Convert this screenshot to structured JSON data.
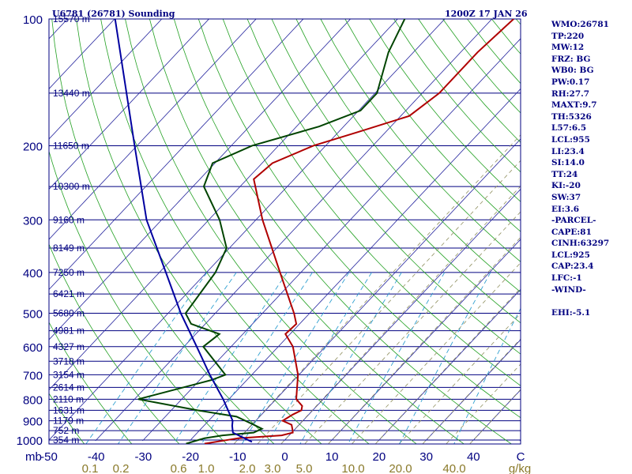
{
  "header": {
    "station": "U6781 (26781) Sounding",
    "time": "1200Z 17 JAN 26"
  },
  "indices": [
    "WMO:26781",
    "TP:220",
    "MW:12",
    "FRZ: BG",
    "WB0: BG",
    "PW:0.17",
    "RH:27.7",
    "MAXT:9.7",
    "TH:5326",
    "L57:6.5",
    "LCL:955",
    "LI:23.4",
    "SI:14.0",
    "TT:24",
    "KI:-20",
    "SW:37",
    "EI:3.6",
    "-PARCEL-",
    "CAPE:81",
    "CINH:63297",
    "LCL:925",
    "CAP:23.4",
    "LFC:-1",
    "-WIND-",
    "",
    "EHI:-5.1"
  ],
  "chart_data": {
    "type": "line",
    "subtype": "skew-t log-p",
    "y_unit_label": "mb",
    "pressure_range_mb": [
      1000,
      100
    ],
    "temperature_range_c": [
      -50,
      50
    ],
    "temperature_ticks": [
      "-50",
      "-40",
      "-30",
      "-20",
      "-10",
      "0",
      "10",
      "20",
      "30",
      "40",
      "C"
    ],
    "temperature_tick_values": [
      -50,
      -40,
      -30,
      -20,
      -10,
      0,
      10,
      20,
      30,
      40,
      50
    ],
    "pressure_ticks": [
      "100",
      "200",
      "300",
      "400",
      "500",
      "600",
      "700",
      "800",
      "900",
      "1000"
    ],
    "pressure_tick_values": [
      100,
      200,
      300,
      400,
      500,
      600,
      700,
      800,
      900,
      1000
    ],
    "mixing_ratio_labels": [
      "0.1",
      "0.2",
      "0.6",
      "1.0",
      "2.0",
      "3.0",
      "5.0",
      "10.0",
      "20.0",
      "40.0",
      "g/kg"
    ],
    "height_labels": [
      {
        "p": 100,
        "text": "15570 m"
      },
      {
        "p": 150,
        "text": "13440 m"
      },
      {
        "p": 200,
        "text": "11650 m"
      },
      {
        "p": 250,
        "text": "10300 m"
      },
      {
        "p": 300,
        "text": "9160 m"
      },
      {
        "p": 350,
        "text": "8149 m"
      },
      {
        "p": 400,
        "text": "7250 m"
      },
      {
        "p": 450,
        "text": "6421 m"
      },
      {
        "p": 500,
        "text": "5680 m"
      },
      {
        "p": 550,
        "text": "4981 m"
      },
      {
        "p": 600,
        "text": "4327 m"
      },
      {
        "p": 650,
        "text": "3718 m"
      },
      {
        "p": 700,
        "text": "3154 m"
      },
      {
        "p": 750,
        "text": "2614 m"
      },
      {
        "p": 800,
        "text": "2110 m"
      },
      {
        "p": 850,
        "text": "1631 m"
      },
      {
        "p": 900,
        "text": "1179 m"
      },
      {
        "p": 950,
        "text": "752 m"
      },
      {
        "p": 1000,
        "text": "354 m"
      }
    ],
    "series": [
      {
        "name": "Temperature",
        "color": "#b00000",
        "points": [
          {
            "p": 1020,
            "t": -16.3
          },
          {
            "p": 990,
            "t": -10.2
          },
          {
            "p": 975,
            "t": -1.6
          },
          {
            "p": 960,
            "t": 0.2
          },
          {
            "p": 950,
            "t": -0.2
          },
          {
            "p": 920,
            "t": -1.6
          },
          {
            "p": 900,
            "t": -4.3
          },
          {
            "p": 870,
            "t": -3.4
          },
          {
            "p": 850,
            "t": -2.4
          },
          {
            "p": 830,
            "t": -3.1
          },
          {
            "p": 800,
            "t": -5.7
          },
          {
            "p": 700,
            "t": -10.2
          },
          {
            "p": 600,
            "t": -16.9
          },
          {
            "p": 560,
            "t": -21.0
          },
          {
            "p": 530,
            "t": -20.7
          },
          {
            "p": 500,
            "t": -23.3
          },
          {
            "p": 400,
            "t": -34.4
          },
          {
            "p": 300,
            "t": -48.6
          },
          {
            "p": 240,
            "t": -58.6
          },
          {
            "p": 220,
            "t": -57.8
          },
          {
            "p": 200,
            "t": -52.6
          },
          {
            "p": 185,
            "t": -45.6
          },
          {
            "p": 170,
            "t": -38.2
          },
          {
            "p": 150,
            "t": -36.4
          },
          {
            "p": 120,
            "t": -36.4
          },
          {
            "p": 100,
            "t": -35.4
          }
        ]
      },
      {
        "name": "Dew point",
        "color": "#004400",
        "points": [
          {
            "p": 1020,
            "t": -20.2
          },
          {
            "p": 990,
            "t": -17.4
          },
          {
            "p": 975,
            "t": -14.1
          },
          {
            "p": 960,
            "t": -8.1
          },
          {
            "p": 940,
            "t": -7.1
          },
          {
            "p": 920,
            "t": -9.6
          },
          {
            "p": 880,
            "t": -14.9
          },
          {
            "p": 850,
            "t": -24.4
          },
          {
            "p": 800,
            "t": -39.2
          },
          {
            "p": 720,
            "t": -27.5
          },
          {
            "p": 700,
            "t": -25.6
          },
          {
            "p": 600,
            "t": -35.9
          },
          {
            "p": 560,
            "t": -35.0
          },
          {
            "p": 530,
            "t": -43.0
          },
          {
            "p": 500,
            "t": -46.3
          },
          {
            "p": 400,
            "t": -48.1
          },
          {
            "p": 350,
            "t": -50.6
          },
          {
            "p": 300,
            "t": -57.7
          },
          {
            "p": 250,
            "t": -67.7
          },
          {
            "p": 220,
            "t": -70.5
          },
          {
            "p": 200,
            "t": -65.6
          },
          {
            "p": 180,
            "t": -55.2
          },
          {
            "p": 165,
            "t": -49.6
          },
          {
            "p": 150,
            "t": -49.6
          },
          {
            "p": 120,
            "t": -55.3
          },
          {
            "p": 100,
            "t": -58.5
          }
        ]
      },
      {
        "name": "Parcel",
        "color": "#0000a0",
        "points": [
          {
            "p": 1010,
            "t": -6.6
          },
          {
            "p": 960,
            "t": -12.5
          },
          {
            "p": 925,
            "t": -14.0
          },
          {
            "p": 900,
            "t": -14.9
          },
          {
            "p": 800,
            "t": -21.2
          },
          {
            "p": 700,
            "t": -28.9
          },
          {
            "p": 600,
            "t": -37.3
          },
          {
            "p": 500,
            "t": -47.3
          },
          {
            "p": 400,
            "t": -58.6
          },
          {
            "p": 300,
            "t": -73.2
          },
          {
            "p": 200,
            "t": -90.5
          },
          {
            "p": 100,
            "t": -119.9
          }
        ]
      }
    ]
  }
}
